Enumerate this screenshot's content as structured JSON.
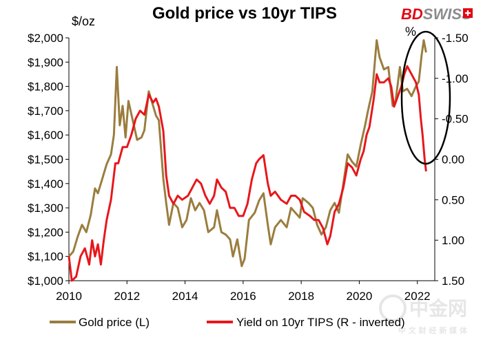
{
  "brand": {
    "name_red": "BD",
    "name_gray": "SWISS"
  },
  "watermark": {
    "big": "中金网",
    "small": "中 文 财 经 新 媒 体"
  },
  "colors": {
    "gold": "#9A7D3E",
    "tips": "#E8161B",
    "brand_red": "#E30613",
    "brand_gray": "#8C8C8C"
  },
  "chart_data": {
    "type": "line",
    "title": "Gold price vs 10yr TIPS",
    "left_axis_label": "$/oz",
    "right_axis_label": "%",
    "x_ticks": [
      "2010",
      "2012",
      "2014",
      "2016",
      "2018",
      "2020",
      "2022"
    ],
    "left_ticks": [
      "$1,000",
      "$1,100",
      "$1,200",
      "$1,300",
      "$1,400",
      "$1,500",
      "$1,600",
      "$1,700",
      "$1,800",
      "$1,900",
      "$2,000"
    ],
    "right_ticks": [
      "-1.50",
      "-1.00",
      "-0.50",
      "0.00",
      "0.50",
      "1.00",
      "1.50"
    ],
    "xlim": [
      2010,
      2022.6
    ],
    "left_ylim": [
      1000,
      2000
    ],
    "right_ylim": [
      -1.5,
      1.5
    ],
    "right_inverted": true,
    "grid": false,
    "legend_position": "bottom",
    "annotation": "ellipse around 2022 highlighting divergence",
    "series": [
      {
        "name": "Gold price (L)",
        "axis": "left",
        "color": "#9A7D3E",
        "points": [
          [
            2010.0,
            1100
          ],
          [
            2010.15,
            1120
          ],
          [
            2010.3,
            1180
          ],
          [
            2010.45,
            1230
          ],
          [
            2010.6,
            1200
          ],
          [
            2010.75,
            1270
          ],
          [
            2010.9,
            1380
          ],
          [
            2011.0,
            1360
          ],
          [
            2011.15,
            1420
          ],
          [
            2011.3,
            1480
          ],
          [
            2011.45,
            1520
          ],
          [
            2011.55,
            1600
          ],
          [
            2011.65,
            1880
          ],
          [
            2011.75,
            1640
          ],
          [
            2011.85,
            1720
          ],
          [
            2011.95,
            1590
          ],
          [
            2012.05,
            1740
          ],
          [
            2012.2,
            1660
          ],
          [
            2012.35,
            1580
          ],
          [
            2012.5,
            1590
          ],
          [
            2012.6,
            1620
          ],
          [
            2012.75,
            1780
          ],
          [
            2012.9,
            1720
          ],
          [
            2013.0,
            1680
          ],
          [
            2013.1,
            1660
          ],
          [
            2013.25,
            1420
          ],
          [
            2013.35,
            1320
          ],
          [
            2013.45,
            1230
          ],
          [
            2013.6,
            1320
          ],
          [
            2013.75,
            1300
          ],
          [
            2013.9,
            1220
          ],
          [
            2014.05,
            1250
          ],
          [
            2014.2,
            1340
          ],
          [
            2014.35,
            1290
          ],
          [
            2014.5,
            1320
          ],
          [
            2014.65,
            1290
          ],
          [
            2014.8,
            1200
          ],
          [
            2015.0,
            1220
          ],
          [
            2015.1,
            1290
          ],
          [
            2015.25,
            1200
          ],
          [
            2015.4,
            1190
          ],
          [
            2015.55,
            1170
          ],
          [
            2015.65,
            1100
          ],
          [
            2015.8,
            1170
          ],
          [
            2015.95,
            1060
          ],
          [
            2016.05,
            1090
          ],
          [
            2016.2,
            1250
          ],
          [
            2016.4,
            1280
          ],
          [
            2016.55,
            1330
          ],
          [
            2016.7,
            1360
          ],
          [
            2016.85,
            1230
          ],
          [
            2016.95,
            1150
          ],
          [
            2017.1,
            1220
          ],
          [
            2017.3,
            1250
          ],
          [
            2017.5,
            1220
          ],
          [
            2017.65,
            1300
          ],
          [
            2017.8,
            1280
          ],
          [
            2017.95,
            1260
          ],
          [
            2018.05,
            1340
          ],
          [
            2018.25,
            1320
          ],
          [
            2018.4,
            1300
          ],
          [
            2018.55,
            1230
          ],
          [
            2018.7,
            1190
          ],
          [
            2018.85,
            1220
          ],
          [
            2019.0,
            1290
          ],
          [
            2019.15,
            1320
          ],
          [
            2019.3,
            1280
          ],
          [
            2019.45,
            1400
          ],
          [
            2019.6,
            1520
          ],
          [
            2019.75,
            1490
          ],
          [
            2019.9,
            1470
          ],
          [
            2020.05,
            1560
          ],
          [
            2020.2,
            1640
          ],
          [
            2020.3,
            1700
          ],
          [
            2020.45,
            1780
          ],
          [
            2020.6,
            1990
          ],
          [
            2020.7,
            1920
          ],
          [
            2020.85,
            1870
          ],
          [
            2021.0,
            1880
          ],
          [
            2021.15,
            1720
          ],
          [
            2021.25,
            1740
          ],
          [
            2021.4,
            1880
          ],
          [
            2021.5,
            1780
          ],
          [
            2021.65,
            1790
          ],
          [
            2021.8,
            1760
          ],
          [
            2021.95,
            1800
          ],
          [
            2022.05,
            1820
          ],
          [
            2022.15,
            1930
          ],
          [
            2022.22,
            1990
          ],
          [
            2022.3,
            1940
          ]
        ]
      },
      {
        "name": "Yield on 10yr TIPS (R - inverted)",
        "axis": "right",
        "color": "#E8161B",
        "points": [
          [
            2010.0,
            1.2
          ],
          [
            2010.1,
            1.5
          ],
          [
            2010.25,
            1.45
          ],
          [
            2010.4,
            1.2
          ],
          [
            2010.55,
            1.1
          ],
          [
            2010.7,
            1.3
          ],
          [
            2010.8,
            1.0
          ],
          [
            2010.9,
            1.2
          ],
          [
            2011.0,
            1.05
          ],
          [
            2011.1,
            1.3
          ],
          [
            2011.2,
            1.0
          ],
          [
            2011.3,
            0.75
          ],
          [
            2011.45,
            0.5
          ],
          [
            2011.6,
            0.05
          ],
          [
            2011.7,
            0.05
          ],
          [
            2011.85,
            -0.15
          ],
          [
            2012.0,
            -0.15
          ],
          [
            2012.15,
            -0.3
          ],
          [
            2012.3,
            -0.5
          ],
          [
            2012.45,
            -0.6
          ],
          [
            2012.6,
            -0.55
          ],
          [
            2012.75,
            -0.8
          ],
          [
            2012.9,
            -0.7
          ],
          [
            2013.0,
            -0.75
          ],
          [
            2013.1,
            -0.65
          ],
          [
            2013.25,
            -0.35
          ],
          [
            2013.35,
            0.2
          ],
          [
            2013.45,
            0.45
          ],
          [
            2013.6,
            0.55
          ],
          [
            2013.75,
            0.45
          ],
          [
            2013.9,
            0.5
          ],
          [
            2014.1,
            0.45
          ],
          [
            2014.25,
            0.35
          ],
          [
            2014.4,
            0.25
          ],
          [
            2014.55,
            0.3
          ],
          [
            2014.7,
            0.45
          ],
          [
            2014.85,
            0.55
          ],
          [
            2015.0,
            0.45
          ],
          [
            2015.1,
            0.25
          ],
          [
            2015.25,
            0.35
          ],
          [
            2015.4,
            0.4
          ],
          [
            2015.55,
            0.6
          ],
          [
            2015.7,
            0.6
          ],
          [
            2015.85,
            0.7
          ],
          [
            2016.0,
            0.7
          ],
          [
            2016.15,
            0.55
          ],
          [
            2016.3,
            0.25
          ],
          [
            2016.45,
            0.05
          ],
          [
            2016.55,
            0.0
          ],
          [
            2016.7,
            -0.05
          ],
          [
            2016.85,
            0.3
          ],
          [
            2016.95,
            0.45
          ],
          [
            2017.1,
            0.4
          ],
          [
            2017.3,
            0.5
          ],
          [
            2017.5,
            0.55
          ],
          [
            2017.65,
            0.45
          ],
          [
            2017.8,
            0.45
          ],
          [
            2017.95,
            0.5
          ],
          [
            2018.1,
            0.65
          ],
          [
            2018.3,
            0.7
          ],
          [
            2018.45,
            0.75
          ],
          [
            2018.6,
            0.75
          ],
          [
            2018.75,
            0.85
          ],
          [
            2018.9,
            1.05
          ],
          [
            2019.0,
            0.95
          ],
          [
            2019.15,
            0.65
          ],
          [
            2019.3,
            0.55
          ],
          [
            2019.45,
            0.35
          ],
          [
            2019.6,
            0.05
          ],
          [
            2019.75,
            0.1
          ],
          [
            2019.9,
            0.2
          ],
          [
            2020.05,
            0.0
          ],
          [
            2020.15,
            -0.1
          ],
          [
            2020.25,
            -0.3
          ],
          [
            2020.35,
            -0.4
          ],
          [
            2020.5,
            -0.75
          ],
          [
            2020.6,
            -1.05
          ],
          [
            2020.7,
            -0.95
          ],
          [
            2020.85,
            -0.95
          ],
          [
            2021.0,
            -1.0
          ],
          [
            2021.1,
            -0.9
          ],
          [
            2021.2,
            -0.65
          ],
          [
            2021.3,
            -0.75
          ],
          [
            2021.45,
            -0.9
          ],
          [
            2021.55,
            -1.05
          ],
          [
            2021.65,
            -1.15
          ],
          [
            2021.8,
            -1.05
          ],
          [
            2021.95,
            -0.95
          ],
          [
            2022.05,
            -0.8
          ],
          [
            2022.12,
            -0.5
          ],
          [
            2022.18,
            -0.3
          ],
          [
            2022.25,
            0.0
          ],
          [
            2022.3,
            0.15
          ]
        ]
      }
    ]
  }
}
